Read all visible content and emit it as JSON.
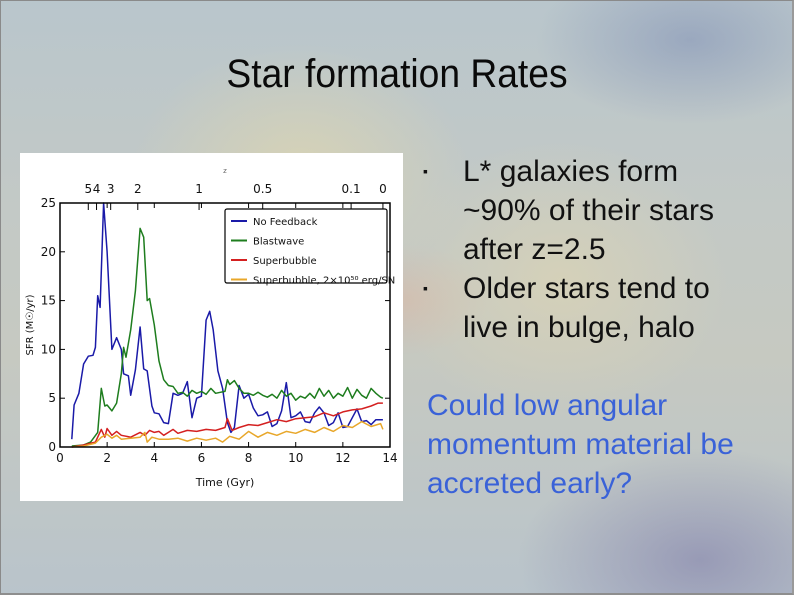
{
  "slide": {
    "title": "Star formation Rates",
    "bullets": [
      {
        "marker": "▪",
        "text": "L* galaxies form ~90% of their stars after z=2.5"
      },
      {
        "marker": "▪",
        "text": "Older stars tend to live in bulge, halo"
      }
    ],
    "question": "Could low angular momentum material be accreted early?",
    "colors": {
      "question_text": "#3a62d8",
      "title_text": "#0a0a0a"
    }
  },
  "chart_data": {
    "type": "line",
    "title": "",
    "xlabel": "Time (Gyr)",
    "ylabel": "SFR (M☉/yr)",
    "xlim": [
      0,
      14
    ],
    "ylim": [
      0,
      25
    ],
    "x_ticks": [
      0,
      2,
      4,
      6,
      8,
      10,
      12,
      14
    ],
    "y_ticks": [
      0,
      5,
      10,
      15,
      20,
      25
    ],
    "top_axis": {
      "label": "z",
      "ticks": [
        {
          "label": "5",
          "t": 1.2
        },
        {
          "label": "4",
          "t": 1.55
        },
        {
          "label": "3",
          "t": 2.15
        },
        {
          "label": "2",
          "t": 3.3
        },
        {
          "label": "1",
          "t": 5.9
        },
        {
          "label": "0.5",
          "t": 8.6
        },
        {
          "label": "0.1",
          "t": 12.35
        },
        {
          "label": "0",
          "t": 13.7
        }
      ]
    },
    "grid": false,
    "legend_position": "upper right",
    "series": [
      {
        "name": "No Feedback",
        "color": "#1a1aa8",
        "x": [
          0.5,
          0.6,
          0.8,
          1.0,
          1.2,
          1.4,
          1.5,
          1.6,
          1.7,
          1.85,
          2.0,
          2.2,
          2.4,
          2.6,
          2.7,
          2.9,
          3.0,
          3.2,
          3.4,
          3.55,
          3.7,
          3.9,
          4.0,
          4.2,
          4.4,
          4.6,
          4.8,
          5.0,
          5.2,
          5.4,
          5.6,
          5.8,
          6.0,
          6.2,
          6.35,
          6.5,
          6.7,
          6.9,
          7.1,
          7.25,
          7.4,
          7.6,
          7.8,
          8.0,
          8.2,
          8.4,
          8.6,
          8.8,
          9.0,
          9.2,
          9.4,
          9.6,
          9.8,
          10.0,
          10.2,
          10.4,
          10.6,
          10.8,
          11.0,
          11.2,
          11.4,
          11.6,
          11.8,
          12.0,
          12.2,
          12.4,
          12.6,
          12.8,
          13.0,
          13.2,
          13.4,
          13.7
        ],
        "y": [
          0.8,
          4.3,
          5.5,
          8.5,
          9.3,
          9.4,
          10.2,
          15.5,
          14.3,
          25,
          20,
          10,
          11.2,
          10,
          7.5,
          7.3,
          5.3,
          7.9,
          12.3,
          8,
          7.8,
          4.2,
          3.5,
          3.4,
          2.5,
          2.4,
          5.5,
          5.3,
          5.5,
          6.7,
          3.0,
          5.0,
          5.2,
          13,
          13.9,
          12,
          7.8,
          6,
          2.5,
          1.5,
          2.0,
          6.3,
          5,
          5.4,
          4,
          3.2,
          3.3,
          3.6,
          2.1,
          2.4,
          3.7,
          6.6,
          3.0,
          3.2,
          3.6,
          2.6,
          2.5,
          3.5,
          4.1,
          3.5,
          2.2,
          2.5,
          3.5,
          2.0,
          2.1,
          3.0,
          3.9,
          2.6,
          2.7,
          2.3,
          2.8,
          2.8
        ]
      },
      {
        "name": "Blastwave",
        "color": "#1e7d1e",
        "x": [
          0.5,
          1.0,
          1.3,
          1.6,
          1.75,
          1.9,
          2.0,
          2.2,
          2.4,
          2.6,
          2.7,
          2.8,
          3.0,
          3.2,
          3.4,
          3.55,
          3.7,
          3.8,
          4.0,
          4.2,
          4.4,
          4.6,
          4.8,
          5.0,
          5.2,
          5.4,
          5.6,
          5.8,
          6.0,
          6.2,
          6.4,
          6.6,
          6.8,
          7.0,
          7.1,
          7.2,
          7.4,
          7.6,
          7.8,
          8.0,
          8.2,
          8.4,
          8.6,
          8.8,
          9.0,
          9.2,
          9.4,
          9.6,
          9.8,
          10.0,
          10.2,
          10.4,
          10.6,
          10.8,
          11.0,
          11.2,
          11.4,
          11.6,
          11.8,
          12.0,
          12.2,
          12.4,
          12.6,
          12.8,
          13.0,
          13.2,
          13.4,
          13.6,
          13.7
        ],
        "y": [
          0.1,
          0.2,
          0.5,
          1.5,
          6,
          4.2,
          4.3,
          3.7,
          4.5,
          7.5,
          10.2,
          9.2,
          12,
          16,
          22.4,
          21.5,
          15,
          15.2,
          12.5,
          8.8,
          6.9,
          6.3,
          6.2,
          5.5,
          5.6,
          5.2,
          5.8,
          5.5,
          5.7,
          5.4,
          6.0,
          5.5,
          5.6,
          5.7,
          6.9,
          6.4,
          6.8,
          6.0,
          5.5,
          5.5,
          5.3,
          5.6,
          5.3,
          5.1,
          5.4,
          5.0,
          5.8,
          5.2,
          5.5,
          4.8,
          5.2,
          5.0,
          5.5,
          5.0,
          6.0,
          5.2,
          5.8,
          5.0,
          5.5,
          5.2,
          6.1,
          5.0,
          5.9,
          5.3,
          5.0,
          6.0,
          5.5,
          5.1,
          5.0
        ]
      },
      {
        "name": "Superbubble",
        "color": "#d42020",
        "x": [
          0.5,
          1.0,
          1.5,
          1.75,
          1.9,
          2.0,
          2.2,
          2.4,
          2.6,
          3.0,
          3.4,
          3.6,
          3.8,
          4.0,
          4.2,
          4.4,
          4.6,
          4.8,
          5.0,
          5.4,
          5.8,
          6.2,
          6.6,
          7.0,
          7.1,
          7.3,
          7.6,
          8.0,
          8.4,
          8.8,
          9.2,
          9.6,
          10.0,
          10.4,
          10.8,
          11.2,
          11.6,
          12.0,
          12.4,
          12.8,
          13.2,
          13.5,
          13.7
        ],
        "y": [
          0,
          0.2,
          0.5,
          1.8,
          1.0,
          1.9,
          1.2,
          1.6,
          1.2,
          1.0,
          1.5,
          1.2,
          1.7,
          1.5,
          1.6,
          1.2,
          1.5,
          1.8,
          1.4,
          1.7,
          1.6,
          1.8,
          1.7,
          2.0,
          2.9,
          1.7,
          2.0,
          2.3,
          2.2,
          2.5,
          2.8,
          2.6,
          2.9,
          3.0,
          3.1,
          3.5,
          3.2,
          3.6,
          3.8,
          3.9,
          4.2,
          4.5,
          4.5
        ]
      },
      {
        "name": "Superbubble, 2×10⁵⁰ erg/SN",
        "color": "#e8a72a",
        "x": [
          0.5,
          1.0,
          1.5,
          1.75,
          2.0,
          2.2,
          2.4,
          2.6,
          3.0,
          3.4,
          3.6,
          3.7,
          3.9,
          4.2,
          4.6,
          5.0,
          5.4,
          5.8,
          6.2,
          6.6,
          6.9,
          7.2,
          7.6,
          8.0,
          8.4,
          8.8,
          9.2,
          9.6,
          10.0,
          10.4,
          10.8,
          11.2,
          11.6,
          12.0,
          12.4,
          12.8,
          13.2,
          13.6,
          13.7
        ],
        "y": [
          0,
          0.1,
          0.4,
          1.0,
          1.3,
          0.9,
          1.2,
          0.8,
          0.9,
          1.0,
          1.5,
          0.5,
          1.0,
          0.8,
          0.8,
          0.9,
          0.6,
          0.9,
          0.7,
          0.9,
          0.5,
          1.1,
          0.8,
          1.6,
          1.0,
          1.5,
          1.2,
          1.6,
          1.4,
          1.8,
          1.5,
          2.0,
          1.6,
          2.2,
          2.0,
          2.6,
          2.1,
          2.4,
          1.8
        ]
      }
    ]
  }
}
